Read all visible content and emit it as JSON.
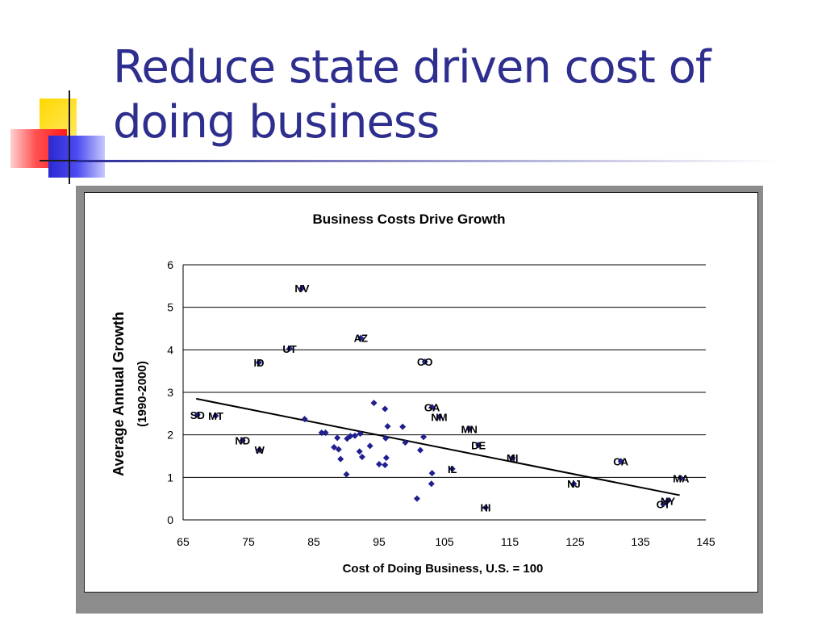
{
  "slide": {
    "title": "Reduce state driven cost of doing business"
  },
  "colors": {
    "title": "#2e2e8f",
    "points": "#1f1f8f",
    "trendline": "#000000",
    "gridlines": "#000000"
  },
  "chart_data": {
    "type": "scatter",
    "title": "Business Costs Drive Growth",
    "xlabel": "Cost of Doing Business, U.S. = 100",
    "ylabel": "Average Annual Growth",
    "ylabel2": "(1990-2000)",
    "xlim": [
      65,
      145
    ],
    "ylim": [
      0,
      6
    ],
    "xticks": [
      65,
      75,
      85,
      95,
      105,
      115,
      125,
      135,
      145
    ],
    "yticks": [
      0,
      1,
      2,
      3,
      4,
      5,
      6
    ],
    "grid": "horizontal",
    "trendline": {
      "x": [
        67,
        141
      ],
      "y": [
        2.85,
        0.58
      ]
    },
    "points": [
      {
        "x": 83.2,
        "y": 5.45,
        "label": "NV"
      },
      {
        "x": 92.2,
        "y": 4.28,
        "label": "AZ"
      },
      {
        "x": 81.3,
        "y": 4.03,
        "label": "UT"
      },
      {
        "x": 102.0,
        "y": 3.72,
        "label": "CO"
      },
      {
        "x": 76.6,
        "y": 3.7,
        "label": "ID"
      },
      {
        "x": 103.1,
        "y": 2.65,
        "label": "GA"
      },
      {
        "x": 67.2,
        "y": 2.47,
        "label": "SD"
      },
      {
        "x": 70.0,
        "y": 2.45,
        "label": "MT"
      },
      {
        "x": 104.2,
        "y": 2.42,
        "label": "NM"
      },
      {
        "x": 108.8,
        "y": 2.14,
        "label": "MN"
      },
      {
        "x": 110.2,
        "y": 1.76,
        "label": "DE"
      },
      {
        "x": 74.1,
        "y": 1.87,
        "label": "ND"
      },
      {
        "x": 76.7,
        "y": 1.65,
        "label": "W"
      },
      {
        "x": 115.4,
        "y": 1.46,
        "label": "MI"
      },
      {
        "x": 132.0,
        "y": 1.38,
        "label": "CA"
      },
      {
        "x": 106.2,
        "y": 1.2,
        "label": "IL"
      },
      {
        "x": 141.2,
        "y": 0.98,
        "label": "MA"
      },
      {
        "x": 124.8,
        "y": 0.85,
        "label": "NJ"
      },
      {
        "x": 139.2,
        "y": 0.45,
        "label": "NY"
      },
      {
        "x": 138.5,
        "y": 0.37,
        "label": "CT"
      },
      {
        "x": 111.3,
        "y": 0.29,
        "label": "HI"
      },
      {
        "x": 83.6,
        "y": 2.37,
        "label": ""
      },
      {
        "x": 86.2,
        "y": 2.05,
        "label": ""
      },
      {
        "x": 86.8,
        "y": 2.05,
        "label": ""
      },
      {
        "x": 88.6,
        "y": 1.93,
        "label": ""
      },
      {
        "x": 90.1,
        "y": 1.91,
        "label": ""
      },
      {
        "x": 90.6,
        "y": 1.97,
        "label": ""
      },
      {
        "x": 91.3,
        "y": 1.98,
        "label": ""
      },
      {
        "x": 92.1,
        "y": 2.03,
        "label": ""
      },
      {
        "x": 93.6,
        "y": 1.74,
        "label": ""
      },
      {
        "x": 94.2,
        "y": 2.75,
        "label": ""
      },
      {
        "x": 95.9,
        "y": 2.61,
        "label": ""
      },
      {
        "x": 96.3,
        "y": 2.2,
        "label": ""
      },
      {
        "x": 96.0,
        "y": 1.92,
        "label": ""
      },
      {
        "x": 98.6,
        "y": 2.19,
        "label": ""
      },
      {
        "x": 99.0,
        "y": 1.82,
        "label": ""
      },
      {
        "x": 101.3,
        "y": 1.64,
        "label": ""
      },
      {
        "x": 101.8,
        "y": 1.95,
        "label": ""
      },
      {
        "x": 88.1,
        "y": 1.71,
        "label": ""
      },
      {
        "x": 88.8,
        "y": 1.66,
        "label": ""
      },
      {
        "x": 89.1,
        "y": 1.43,
        "label": ""
      },
      {
        "x": 92.4,
        "y": 1.48,
        "label": ""
      },
      {
        "x": 92.0,
        "y": 1.61,
        "label": ""
      },
      {
        "x": 95.0,
        "y": 1.31,
        "label": ""
      },
      {
        "x": 95.9,
        "y": 1.29,
        "label": ""
      },
      {
        "x": 96.1,
        "y": 1.46,
        "label": ""
      },
      {
        "x": 103.1,
        "y": 1.1,
        "label": ""
      },
      {
        "x": 103.0,
        "y": 0.85,
        "label": ""
      },
      {
        "x": 90.0,
        "y": 1.07,
        "label": ""
      },
      {
        "x": 100.8,
        "y": 0.5,
        "label": ""
      }
    ]
  }
}
